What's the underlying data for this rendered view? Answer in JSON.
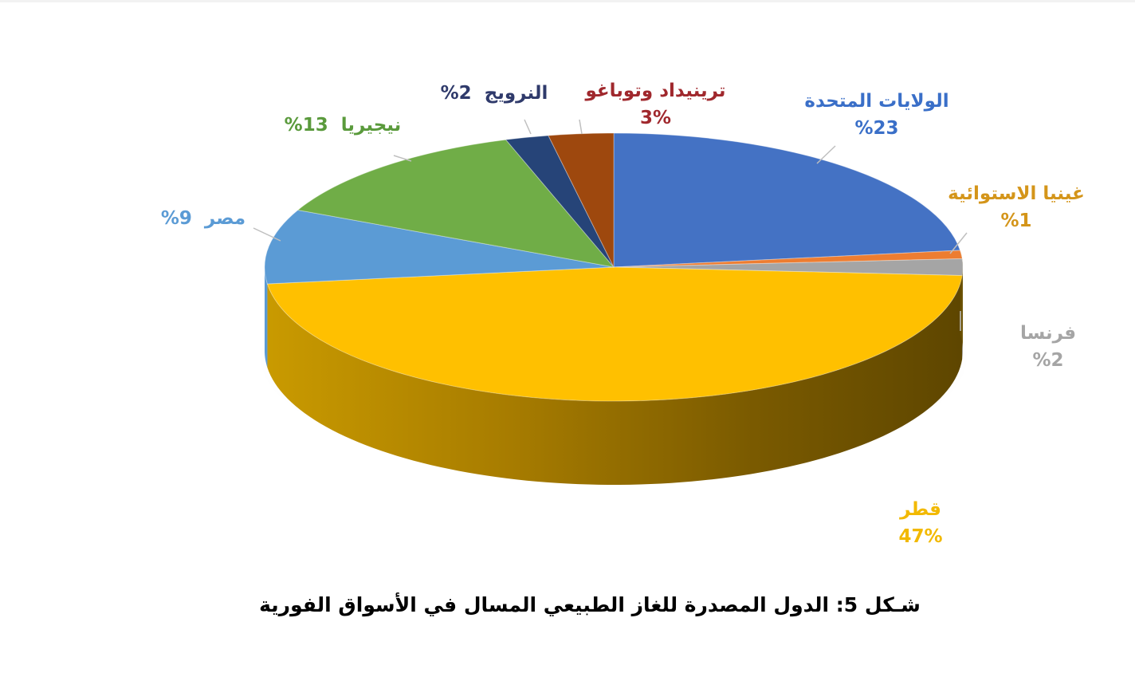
{
  "chart_data": {
    "type": "pie",
    "style": "3d",
    "title": "",
    "slices": [
      {
        "name": "الولايات المتحدة",
        "pct_label": "%23",
        "value": 23,
        "color": "#4472c4",
        "label_color": "#3a6fc8"
      },
      {
        "name": "غينيا الاستوائية",
        "pct_label": "%1",
        "value": 1,
        "color": "#ed7d31",
        "label_color": "#d4951a"
      },
      {
        "name": "فرنسا",
        "pct_label": "%2",
        "value": 2,
        "color": "#a5a5a5",
        "label_color": "#a5a5a5"
      },
      {
        "name": "قطر",
        "pct_label": "47%",
        "value": 47,
        "color": "#ffc000",
        "label_color": "#f2b900"
      },
      {
        "name": "مصر",
        "pct_label": "9%",
        "value": 9,
        "color": "#5b9bd5",
        "label_color": "#5b9bd5"
      },
      {
        "name": "نيجيريا",
        "pct_label": "13%",
        "value": 13,
        "color": "#70ad47",
        "label_color": "#5a9a3c"
      },
      {
        "name": "النرويج",
        "pct_label": "2%",
        "value": 2,
        "color": "#264478",
        "label_color": "#2f3a6b"
      },
      {
        "name": "ترينيداد وتوباغو",
        "pct_label": "3%",
        "value": 3,
        "color": "#9e480e",
        "label_color": "#a0282d"
      }
    ]
  },
  "caption": "شـكل 5: الدول المصدرة للغاز الطبيعي المسال في الأسواق الفورية"
}
